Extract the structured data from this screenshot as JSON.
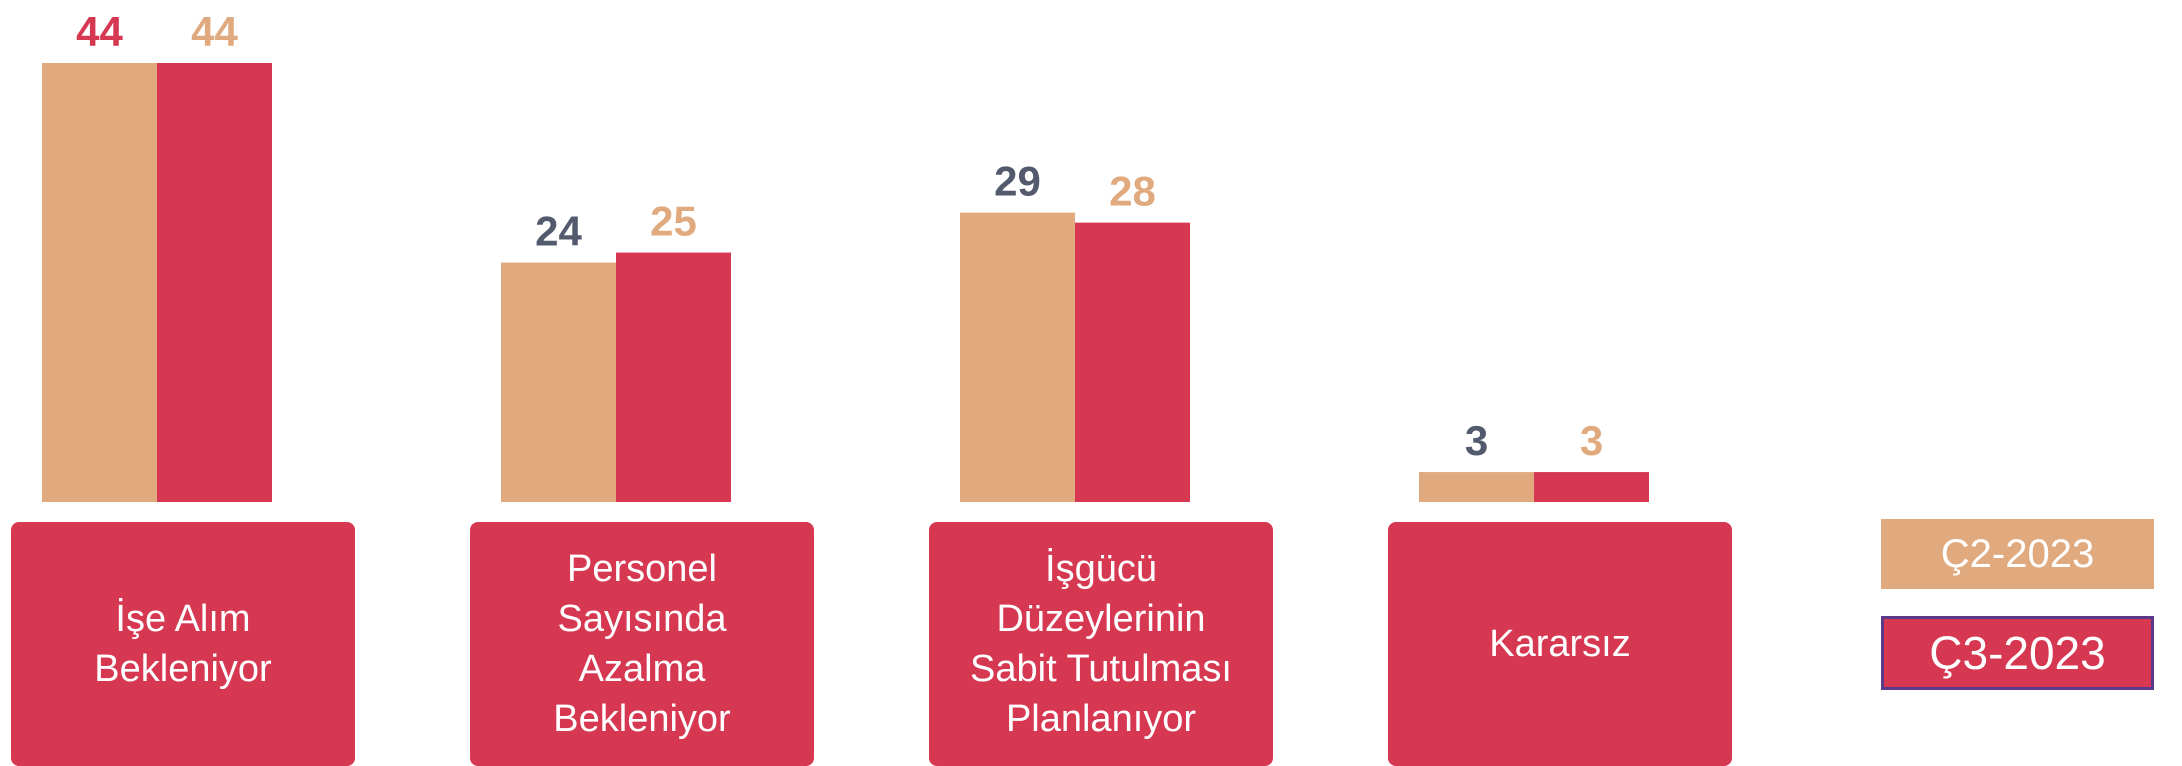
{
  "chart_data": {
    "type": "bar",
    "categories": [
      "İşe Alım Bekleniyor",
      "Personel Sayısında Azalma Bekleniyor",
      "İşgücü Düzeylerinin Sabit Tutulması Planlanıyor",
      "Kararsız"
    ],
    "series": [
      {
        "name": "Ç2-2023",
        "color": "#e0aa7e",
        "values": [
          44,
          24,
          29,
          3
        ],
        "label_colors": [
          "#d63852",
          "#545a6e",
          "#545a6e",
          "#545a6e"
        ]
      },
      {
        "name": "Ç3-2023",
        "color": "#d63852",
        "values": [
          44,
          25,
          28,
          3
        ],
        "label_colors": [
          "#e0aa7e",
          "#e0aa7e",
          "#e0aa7e",
          "#e0aa7e"
        ]
      }
    ],
    "legend": "right"
  }
}
